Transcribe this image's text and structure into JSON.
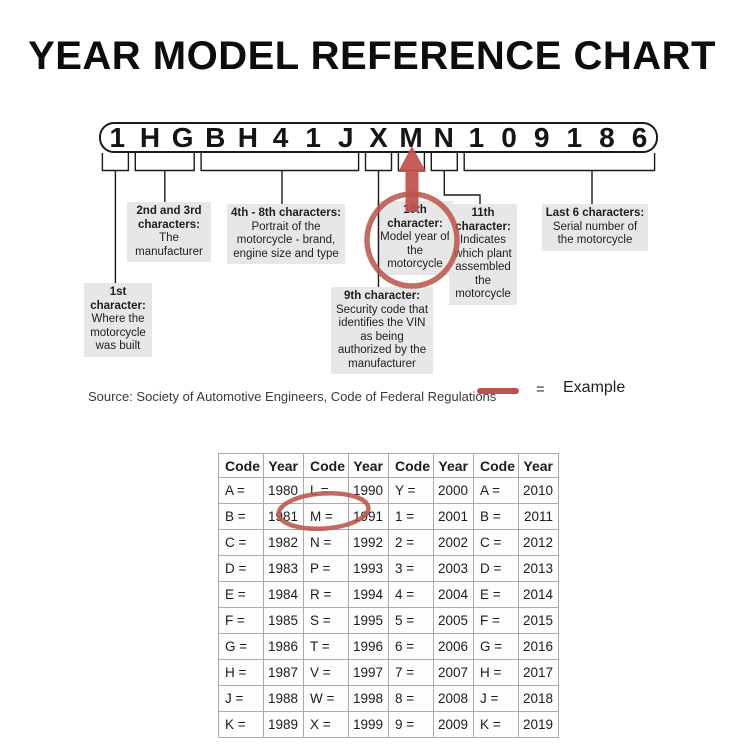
{
  "title": "YEAR MODEL REFERENCE CHART",
  "vin": {
    "characters": [
      "1",
      "H",
      "G",
      "B",
      "H",
      "4",
      "1",
      "J",
      "X",
      "M",
      "N",
      "1",
      "0",
      "9",
      "1",
      "8",
      "6"
    ]
  },
  "annotations": {
    "first": {
      "title": "1st character:",
      "body": "Where the motorcycle was built"
    },
    "second_third": {
      "title": "2nd and 3rd characters:",
      "body": "The manufacturer"
    },
    "fourth_eighth": {
      "title": "4th - 8th characters:",
      "body": "Portrait of the motorcycle - brand, engine size and type"
    },
    "ninth": {
      "title": "9th character:",
      "body": "Security code that identifies the VIN as being authorized by the manufacturer"
    },
    "tenth": {
      "title": "10th character:",
      "body": "Model year of the motorcycle"
    },
    "eleventh": {
      "title": "11th character:",
      "body": "Indicates which plant assembled the motorcycle"
    },
    "last_six": {
      "title": "Last 6 characters:",
      "body": "Serial number of the motorcycle"
    }
  },
  "source_line": "Source:  Society of Automotive Engineers, Code of Federal Regulations",
  "legend": {
    "equals": "=",
    "label": "Example"
  },
  "colors": {
    "accent_red": "#c0504d",
    "highlight_red": "#b9544a",
    "label_bg": "#e7e7e7",
    "table_border": "#ababab"
  },
  "table": {
    "columns": [
      "Code",
      "Year",
      "Code",
      "Year",
      "Code",
      "Year",
      "Code",
      "Year"
    ],
    "rows": [
      [
        "A =",
        "1980",
        "L =",
        "1990",
        "Y =",
        "2000",
        "A =",
        "2010"
      ],
      [
        "B =",
        "1981",
        "M =",
        "1991",
        "1 =",
        "2001",
        "B =",
        "2011"
      ],
      [
        "C =",
        "1982",
        "N =",
        "1992",
        "2 =",
        "2002",
        "C =",
        "2012"
      ],
      [
        "D =",
        "1983",
        "P =",
        "1993",
        "3 =",
        "2003",
        "D =",
        "2013"
      ],
      [
        "E =",
        "1984",
        "R =",
        "1994",
        "4 =",
        "2004",
        "E =",
        "2014"
      ],
      [
        "F =",
        "1985",
        "S =",
        "1995",
        "5 =",
        "2005",
        "F =",
        "2015"
      ],
      [
        "G =",
        "1986",
        "T =",
        "1996",
        "6 =",
        "2006",
        "G =",
        "2016"
      ],
      [
        "H =",
        "1987",
        "V =",
        "1997",
        "7 =",
        "2007",
        "H =",
        "2017"
      ],
      [
        "J =",
        "1988",
        "W =",
        "1998",
        "8 =",
        "2008",
        "J =",
        "2018"
      ],
      [
        "K =",
        "1989",
        "X =",
        "1999",
        "9 =",
        "2009",
        "K =",
        "2019"
      ]
    ],
    "highlighted_code": "M =",
    "highlighted_year": "1991"
  }
}
